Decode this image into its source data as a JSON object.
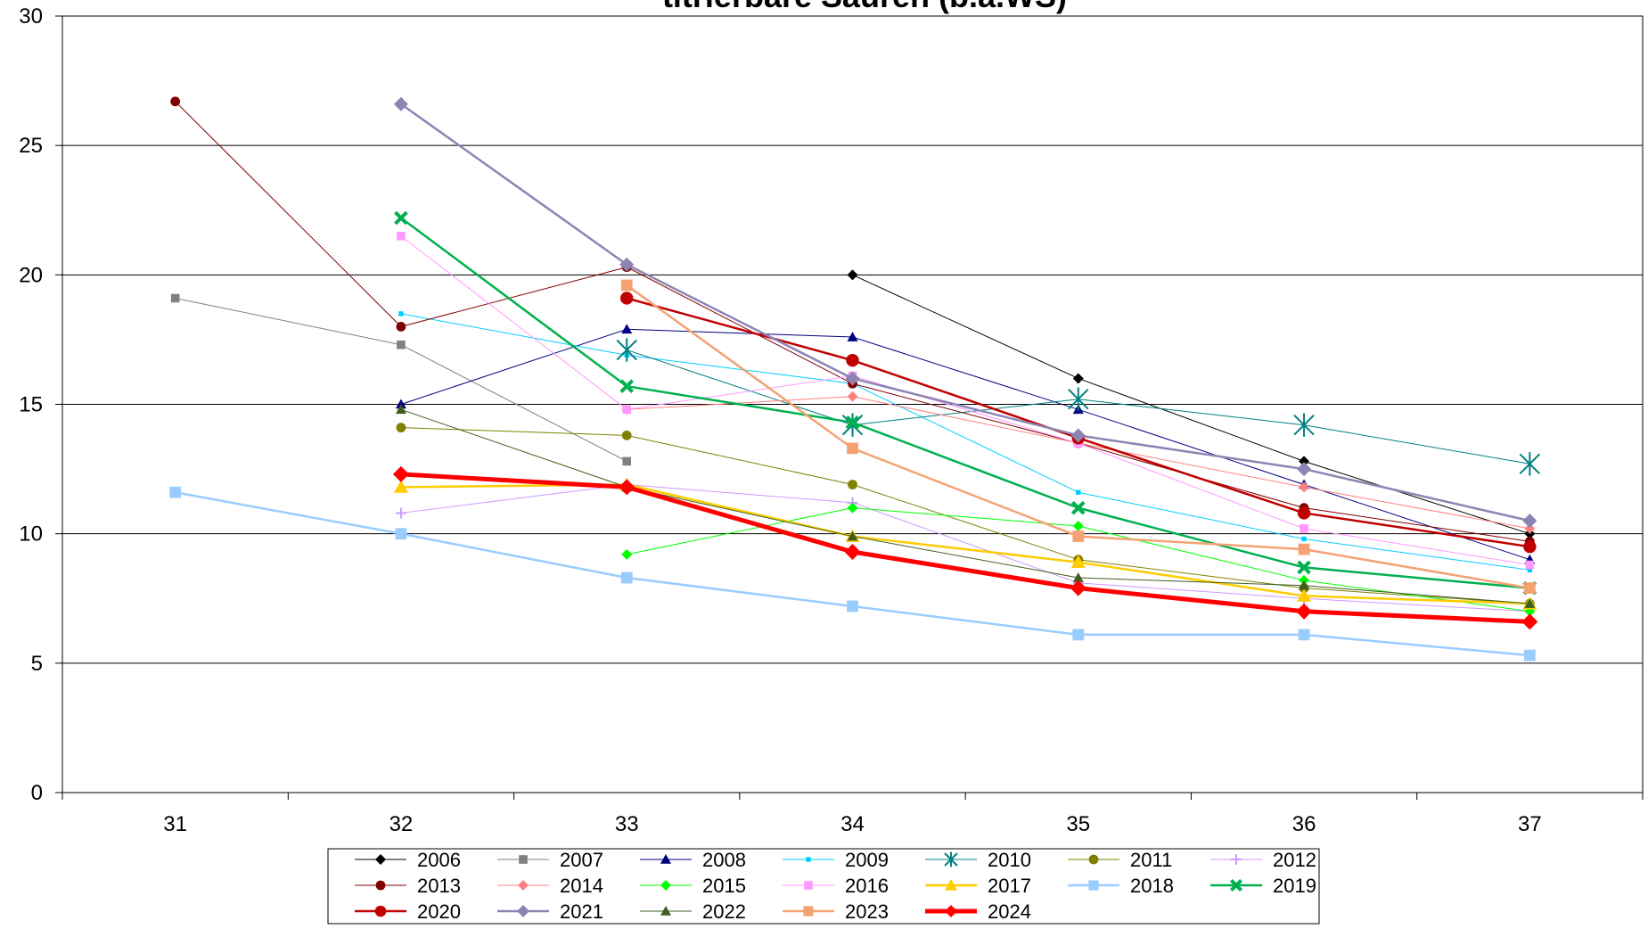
{
  "chart_data": {
    "type": "line",
    "title": "titrierbare Säuren (b.a.WS)",
    "xlabel": "",
    "ylabel": "",
    "x": [
      31,
      32,
      33,
      34,
      35,
      36,
      37
    ],
    "ylim": [
      0,
      30
    ],
    "yticks": [
      0,
      5,
      10,
      15,
      20,
      25,
      30
    ],
    "grid": "horizontal",
    "legend_position": "bottom",
    "series": [
      {
        "name": "2006",
        "color": "#000000",
        "marker": "diamond",
        "width": 1,
        "values": [
          null,
          null,
          null,
          20.0,
          16.0,
          12.8,
          10.0
        ]
      },
      {
        "name": "2007",
        "color": "#808080",
        "marker": "square",
        "width": 1,
        "values": [
          19.1,
          17.3,
          12.8,
          null,
          null,
          null,
          null
        ]
      },
      {
        "name": "2008",
        "color": "#000080",
        "marker": "triangle",
        "width": 1,
        "values": [
          null,
          15.0,
          17.9,
          17.6,
          14.8,
          11.9,
          9.0
        ]
      },
      {
        "name": "2009",
        "color": "#00CCFF",
        "marker": "smallsquare",
        "width": 1,
        "values": [
          null,
          18.5,
          16.9,
          15.8,
          11.6,
          9.8,
          8.6
        ]
      },
      {
        "name": "2010",
        "color": "#008080",
        "marker": "star",
        "width": 1,
        "values": [
          null,
          null,
          17.1,
          14.2,
          15.2,
          14.2,
          12.7
        ]
      },
      {
        "name": "2011",
        "color": "#808000",
        "marker": "circle",
        "width": 1,
        "values": [
          null,
          14.1,
          13.8,
          11.9,
          9.0,
          7.9,
          7.3
        ]
      },
      {
        "name": "2012",
        "color": "#CC99FF",
        "marker": "plus",
        "width": 1,
        "values": [
          null,
          10.8,
          11.9,
          11.2,
          8.1,
          7.5,
          7.0
        ]
      },
      {
        "name": "2013",
        "color": "#800000",
        "marker": "circle",
        "width": 1,
        "values": [
          26.7,
          18.0,
          20.3,
          15.8,
          13.5,
          11.0,
          9.7
        ]
      },
      {
        "name": "2014",
        "color": "#FF8080",
        "marker": "diamond",
        "width": 1,
        "values": [
          null,
          null,
          14.8,
          15.3,
          13.5,
          11.8,
          10.2
        ]
      },
      {
        "name": "2015",
        "color": "#00FF00",
        "marker": "diamond",
        "width": 1,
        "values": [
          null,
          null,
          9.2,
          11.0,
          10.3,
          8.2,
          7.0
        ]
      },
      {
        "name": "2016",
        "color": "#FF99FF",
        "marker": "square",
        "width": 1,
        "values": [
          null,
          21.5,
          14.8,
          16.1,
          13.5,
          10.2,
          8.8
        ]
      },
      {
        "name": "2017",
        "color": "#FFCC00",
        "marker": "triangle",
        "width": 2.5,
        "values": [
          null,
          11.8,
          11.9,
          9.9,
          8.9,
          7.6,
          7.3
        ]
      },
      {
        "name": "2018",
        "color": "#99CCFF",
        "marker": "square",
        "width": 2.5,
        "values": [
          11.6,
          10.0,
          8.3,
          7.2,
          6.1,
          6.1,
          5.3
        ]
      },
      {
        "name": "2019",
        "color": "#00B050",
        "marker": "x",
        "width": 2.5,
        "values": [
          null,
          22.2,
          15.7,
          14.3,
          11.0,
          8.7,
          7.9
        ]
      },
      {
        "name": "2020",
        "color": "#C00000",
        "marker": "circle",
        "width": 2.5,
        "values": [
          null,
          null,
          19.1,
          16.7,
          13.7,
          10.8,
          9.5
        ]
      },
      {
        "name": "2021",
        "color": "#8E84B4",
        "marker": "diamond",
        "width": 2.5,
        "values": [
          null,
          26.6,
          20.4,
          16.0,
          13.8,
          12.5,
          10.5
        ]
      },
      {
        "name": "2022",
        "color": "#3F5F1F",
        "marker": "triangle",
        "width": 1,
        "values": [
          null,
          14.8,
          11.8,
          9.9,
          8.3,
          8.0,
          7.3
        ]
      },
      {
        "name": "2023",
        "color": "#F4A272",
        "marker": "square",
        "width": 2.5,
        "values": [
          null,
          null,
          19.6,
          13.3,
          9.9,
          9.4,
          7.9
        ]
      },
      {
        "name": "2024",
        "color": "#FF0000",
        "marker": "diamond",
        "width": 5,
        "values": [
          null,
          12.3,
          11.8,
          9.3,
          7.9,
          7.0,
          6.6
        ]
      }
    ]
  }
}
